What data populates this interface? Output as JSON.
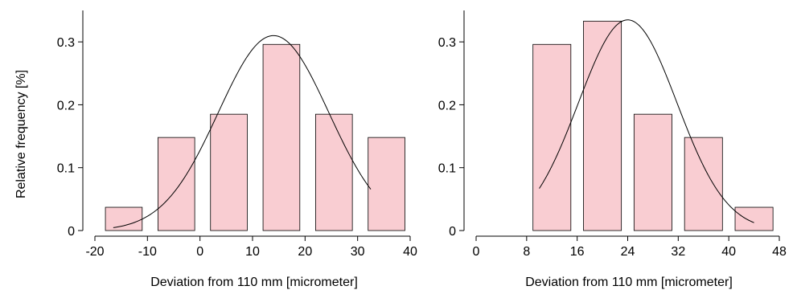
{
  "chart_data": [
    {
      "type": "bar",
      "xlabel": "Deviation from 110 mm [micrometer]",
      "ylabel": "Relative frequency [%]",
      "xlim": [
        -20,
        40
      ],
      "ylim": [
        0,
        0.35
      ],
      "xticks": [
        "-20",
        "-10",
        "0",
        "10",
        "20",
        "30",
        "40"
      ],
      "yticks": [
        "0",
        "0.1",
        "0.2",
        "0.3"
      ],
      "bins": [
        {
          "from": -18,
          "to": -11,
          "value": 0.037
        },
        {
          "from": -8,
          "to": -1,
          "value": 0.148
        },
        {
          "from": 2,
          "to": 9,
          "value": 0.185
        },
        {
          "from": 12,
          "to": 19,
          "value": 0.296
        },
        {
          "from": 22,
          "to": 29,
          "value": 0.185
        },
        {
          "from": 32,
          "to": 39,
          "value": 0.148
        }
      ],
      "curve": {
        "type": "normal",
        "mean": 14,
        "peak": 0.31,
        "sd": 10.5,
        "x_range": [
          -16.5,
          32.5
        ]
      }
    },
    {
      "type": "bar",
      "xlabel": "Deviation from 110 mm [micrometer]",
      "ylabel": "",
      "xlim": [
        0,
        48
      ],
      "ylim": [
        0,
        0.35
      ],
      "xticks": [
        "0",
        "8",
        "16",
        "24",
        "32",
        "40",
        "48"
      ],
      "yticks": [
        "0",
        "0.1",
        "0.2",
        "0.3"
      ],
      "bins": [
        {
          "from": 9,
          "to": 15,
          "value": 0.296
        },
        {
          "from": 17,
          "to": 23,
          "value": 0.333
        },
        {
          "from": 25,
          "to": 31,
          "value": 0.185
        },
        {
          "from": 33,
          "to": 39,
          "value": 0.148
        },
        {
          "from": 41,
          "to": 47,
          "value": 0.037
        }
      ],
      "curve": {
        "type": "normal",
        "mean": 24,
        "peak": 0.335,
        "sd": 7.8,
        "x_range": [
          10,
          44
        ]
      }
    }
  ]
}
